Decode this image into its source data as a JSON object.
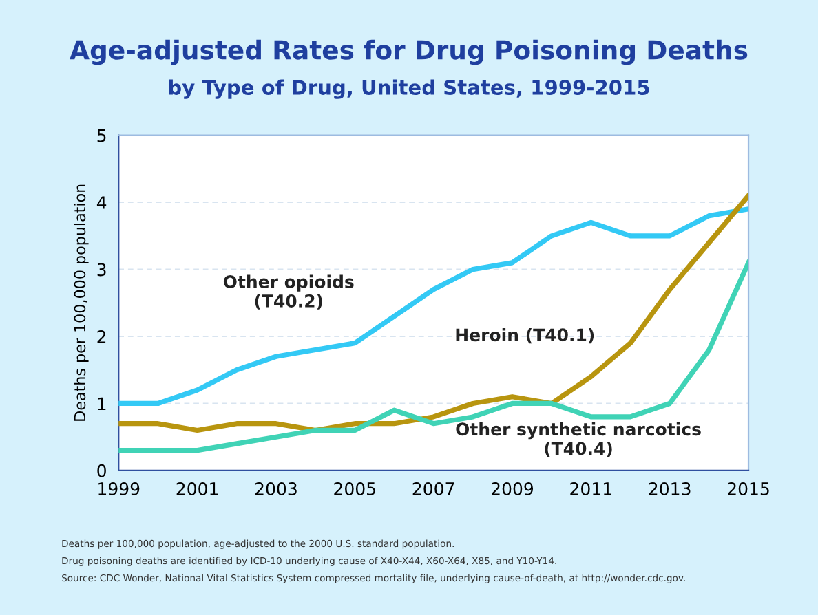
{
  "chart_data": {
    "type": "line",
    "title": "Age-adjusted Rates for Drug Poisoning Deaths",
    "subtitle": "by Type of Drug, United States, 1999-2015",
    "ylabel": "Deaths per 100,000 population",
    "x": [
      1999,
      2000,
      2001,
      2002,
      2003,
      2004,
      2005,
      2006,
      2007,
      2008,
      2009,
      2010,
      2011,
      2012,
      2013,
      2014,
      2015
    ],
    "series": [
      {
        "name": "Other opioids\n(T40.2)",
        "color": "#33c9f5",
        "values": [
          1.0,
          1.0,
          1.2,
          1.5,
          1.7,
          1.8,
          1.9,
          2.3,
          2.7,
          3.0,
          3.1,
          3.5,
          3.7,
          3.5,
          3.5,
          3.8,
          3.9
        ]
      },
      {
        "name": "Heroin (T40.1)",
        "color": "#b8950f",
        "values": [
          0.7,
          0.7,
          0.6,
          0.7,
          0.7,
          0.6,
          0.7,
          0.7,
          0.8,
          1.0,
          1.1,
          1.0,
          1.4,
          1.9,
          2.7,
          3.4,
          4.1
        ]
      },
      {
        "name": "Other synthetic narcotics\n(T40.4)",
        "color": "#40d3b6",
        "values": [
          0.3,
          0.3,
          0.3,
          0.4,
          0.5,
          0.6,
          0.6,
          0.9,
          0.7,
          0.8,
          1.0,
          1.0,
          0.8,
          0.8,
          1.0,
          1.8,
          3.1
        ]
      }
    ],
    "xlim": [
      1999,
      2015
    ],
    "xticks": [
      1999,
      2001,
      2003,
      2005,
      2007,
      2009,
      2011,
      2013,
      2015
    ],
    "ylim": [
      0,
      5
    ],
    "yticks": [
      0,
      1,
      2,
      3,
      4,
      5
    ],
    "grid": "y",
    "legend": false,
    "marker": "none",
    "line_style": "solid",
    "annotations": [
      "Deaths per 100,000 population, age-adjusted to the 2000 U.S. standard population.",
      "Drug poisoning deaths are identified by ICD-10 underlying cause of X40-X44, X60-X64, X85, and Y10-Y14.",
      "Source: CDC Wonder, National Vital Statistics System compressed mortality file, underlying cause-of-death, at http://wonder.cdc.gov."
    ]
  }
}
